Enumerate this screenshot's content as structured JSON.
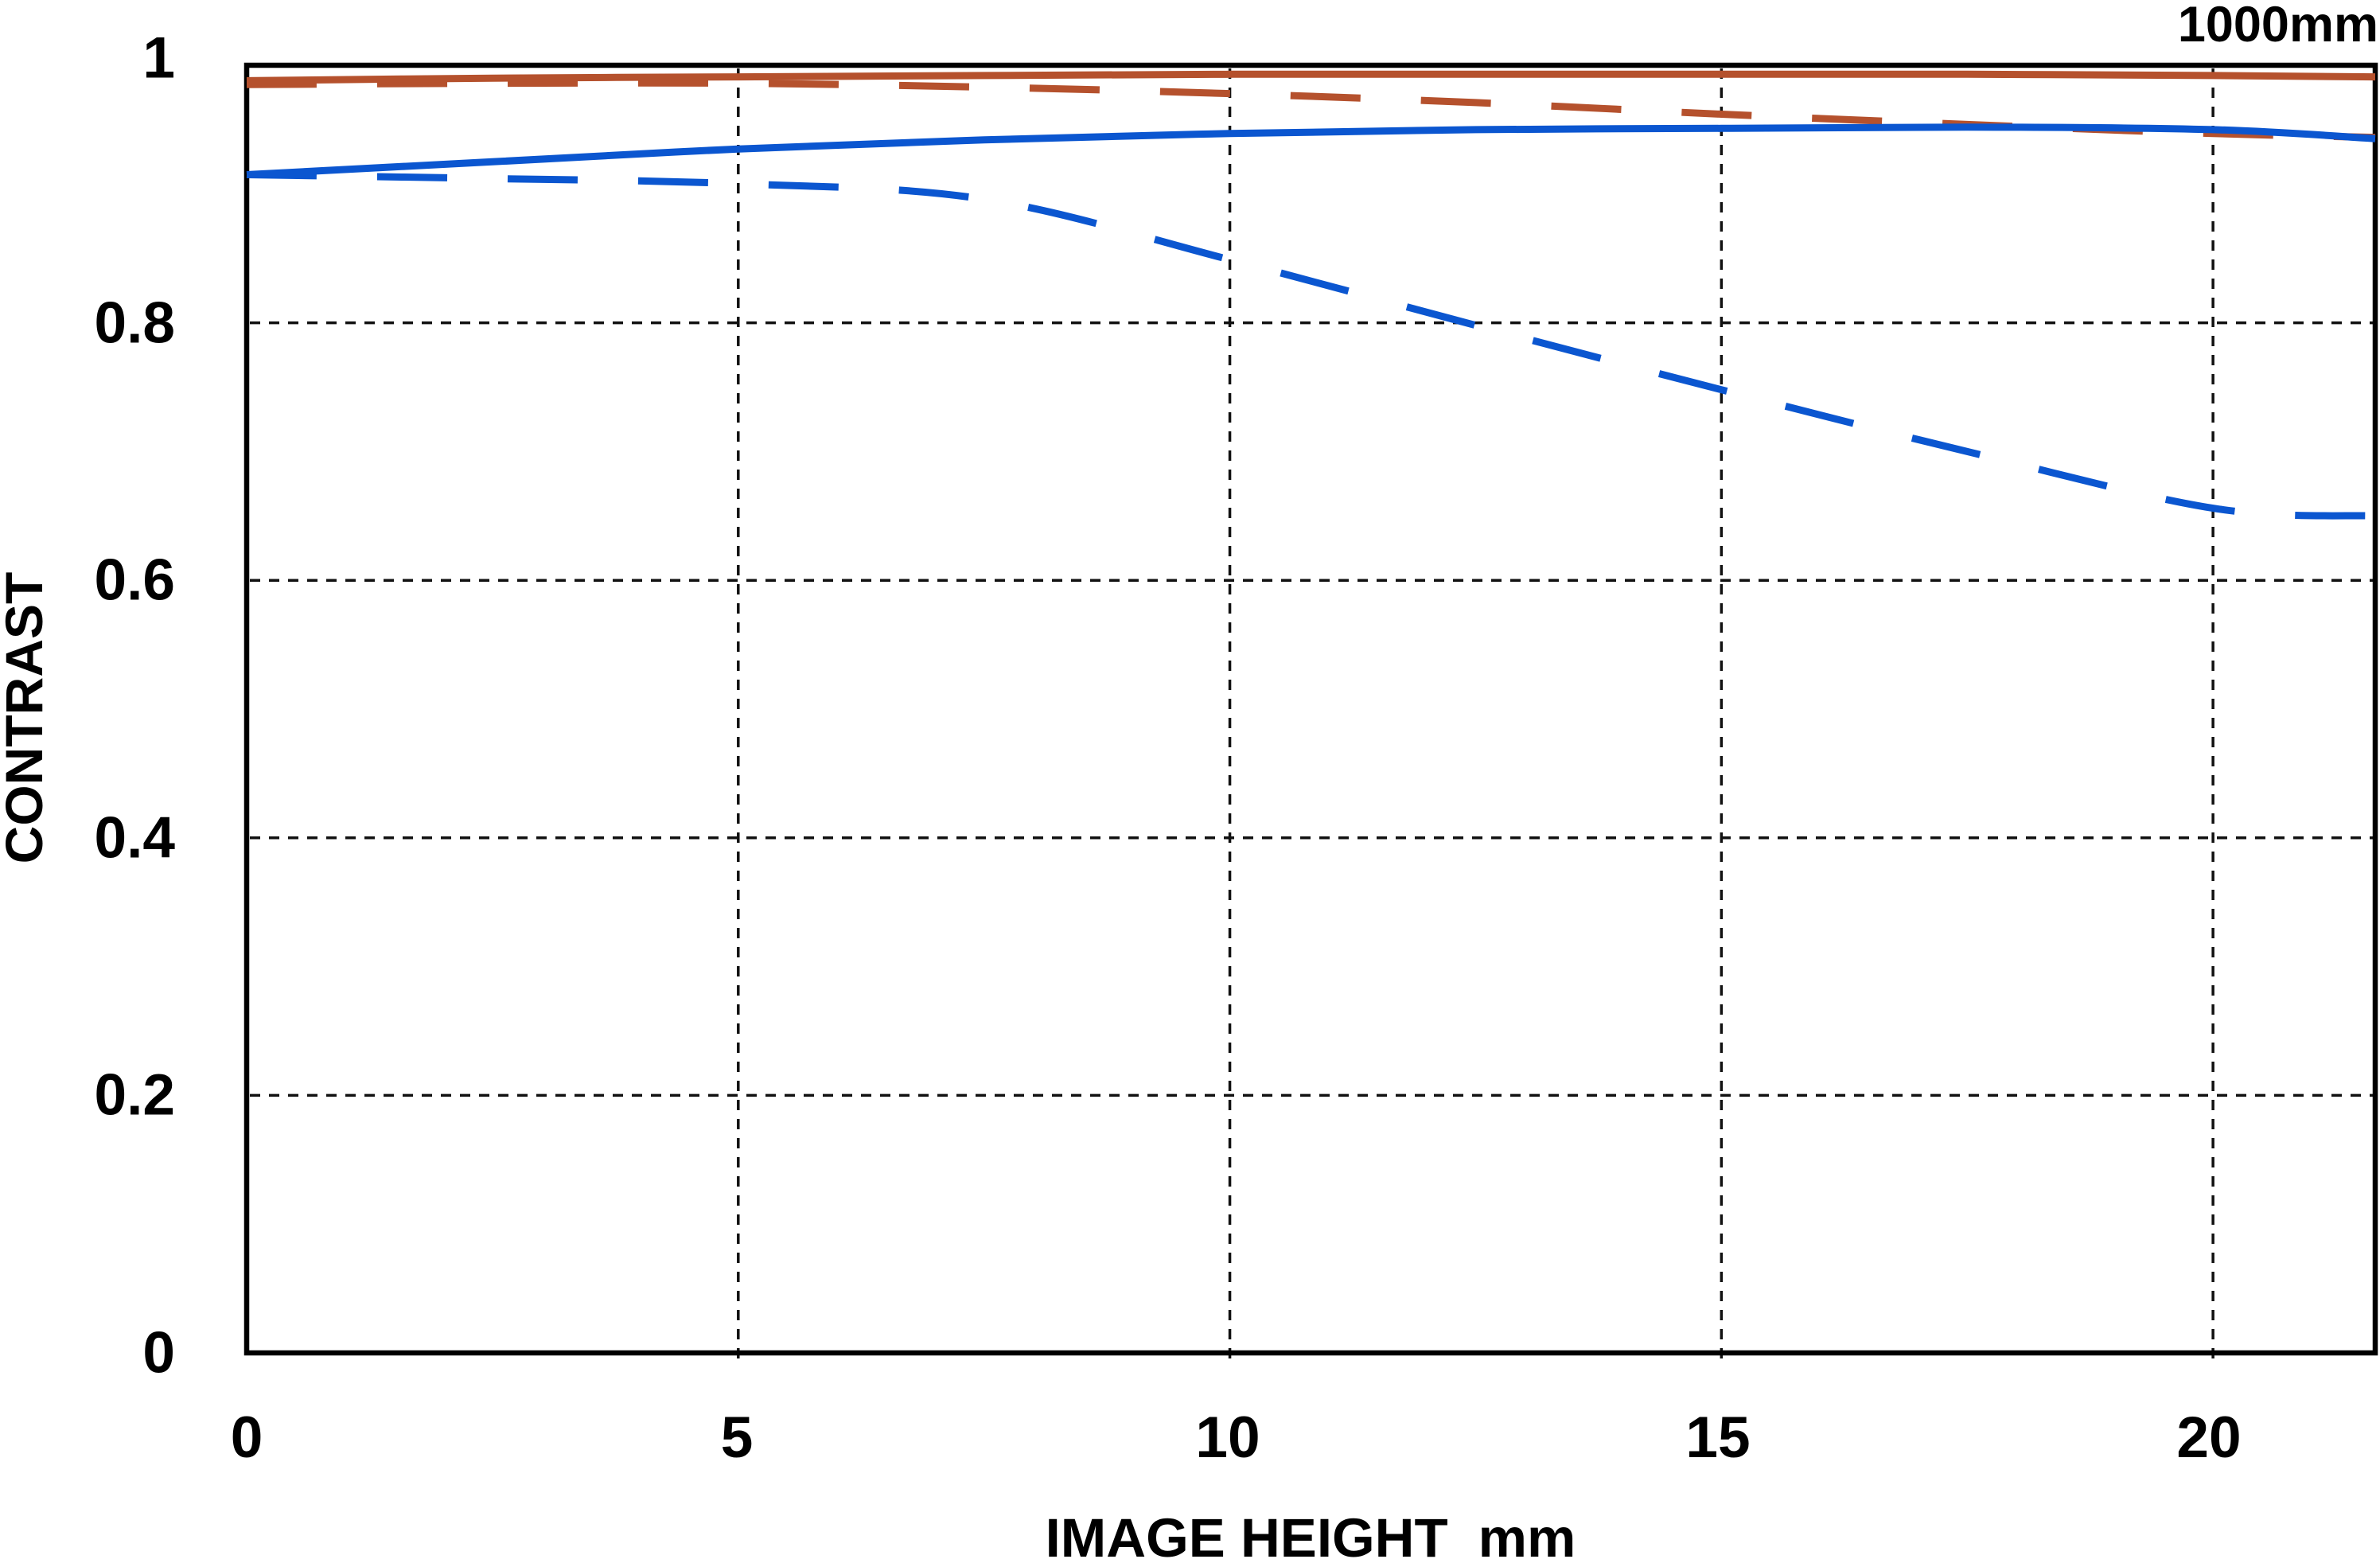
{
  "title": "1000mm",
  "axes": {
    "y_label": "CONTRAST",
    "x_label": "IMAGE HEIGHT",
    "x_unit": "mm",
    "y_tick_labels": [
      "1",
      "0.8",
      "0.6",
      "0.4",
      "0.2",
      "0"
    ],
    "x_tick_labels": [
      "0",
      "5",
      "10",
      "15",
      "20"
    ]
  },
  "colors": {
    "red": "#b5512d",
    "blue": "#0b56d0",
    "frame": "#000000",
    "grid": "#111111"
  },
  "chart_data": {
    "type": "line",
    "title": "1000mm",
    "xlabel": "IMAGE HEIGHT mm",
    "ylabel": "CONTRAST",
    "xlim": [
      0,
      21.65
    ],
    "ylim": [
      0,
      1
    ],
    "x_ticks": [
      0,
      5,
      10,
      15,
      20
    ],
    "y_ticks": [
      0,
      0.2,
      0.4,
      0.6,
      0.8,
      1
    ],
    "grid": "dashed",
    "legend_position": "none",
    "x": [
      0,
      2.5,
      5,
      7.5,
      10,
      12.5,
      15,
      17.5,
      20,
      21.65
    ],
    "series": [
      {
        "name": "red-dashed",
        "color": "#b5512d",
        "style": "dashed",
        "values": [
          0.985,
          0.986,
          0.986,
          0.983,
          0.978,
          0.971,
          0.962,
          0.954,
          0.947,
          0.944
        ]
      },
      {
        "name": "red-solid",
        "color": "#b5512d",
        "style": "solid",
        "values": [
          0.988,
          0.99,
          0.991,
          0.992,
          0.993,
          0.993,
          0.993,
          0.993,
          0.992,
          0.991
        ]
      },
      {
        "name": "blue-dashed",
        "color": "#0b56d0",
        "style": "dashed",
        "values": [
          0.915,
          0.912,
          0.908,
          0.896,
          0.849,
          0.798,
          0.748,
          0.7,
          0.656,
          0.65
        ]
      },
      {
        "name": "blue-solid",
        "color": "#0b56d0",
        "style": "solid",
        "values": [
          0.915,
          0.925,
          0.935,
          0.942,
          0.947,
          0.95,
          0.951,
          0.952,
          0.95,
          0.943
        ]
      }
    ]
  }
}
